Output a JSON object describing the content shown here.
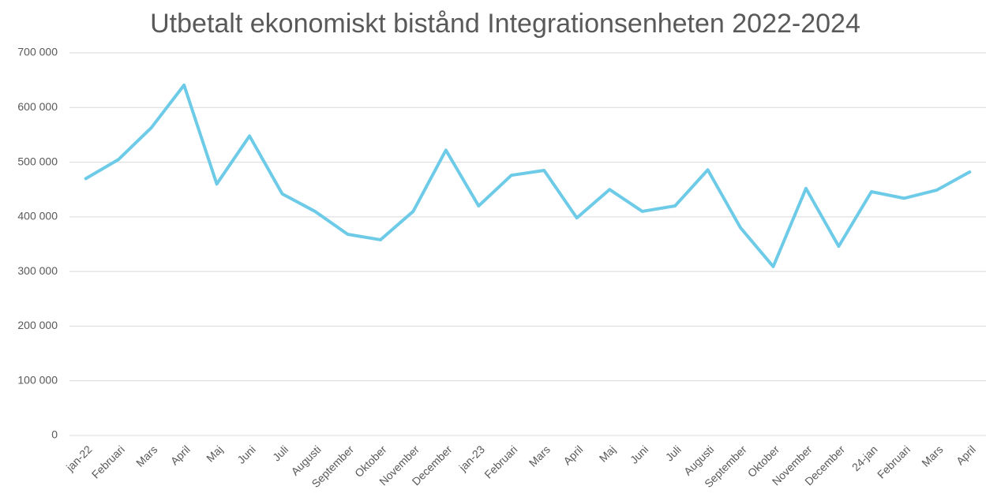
{
  "chart_data": {
    "type": "line",
    "title": "Utbetalt ekonomiskt bistånd Integrationsenheten 2022-2024",
    "categories": [
      "jan-22",
      "Februari",
      "Mars",
      "April",
      "Maj",
      "Juni",
      "Juli",
      "Augusti",
      "September",
      "Oktober",
      "November",
      "December",
      "jan-23",
      "Februari",
      "Mars",
      "April",
      "Maj",
      "Juni",
      "Juli",
      "Augusti",
      "September",
      "Oktober",
      "November",
      "December",
      "24-jan",
      "Februari",
      "Mars",
      "April"
    ],
    "series": [
      {
        "name": "Utbetalt ekonomiskt bistånd",
        "color": "#6dcbe8",
        "values": [
          470000,
          505000,
          563000,
          641000,
          460000,
          548000,
          442000,
          410000,
          368000,
          358000,
          410000,
          522000,
          420000,
          476000,
          485000,
          398000,
          450000,
          410000,
          420000,
          486000,
          380000,
          309000,
          452000,
          346000,
          446000,
          434000,
          449000,
          482000
        ]
      }
    ],
    "ylim": [
      0,
      700000
    ],
    "yticks": [
      0,
      {
        "value": 100000,
        "label": "100 000"
      },
      {
        "value": 200000,
        "label": "200 000"
      },
      {
        "value": 300000,
        "label": "300 000"
      },
      {
        "value": 400000,
        "label": "400 000"
      },
      {
        "value": 500000,
        "label": "500 000"
      },
      {
        "value": 600000,
        "label": "600 000"
      },
      {
        "value": 700000,
        "label": "700 000"
      }
    ],
    "grid": true
  }
}
